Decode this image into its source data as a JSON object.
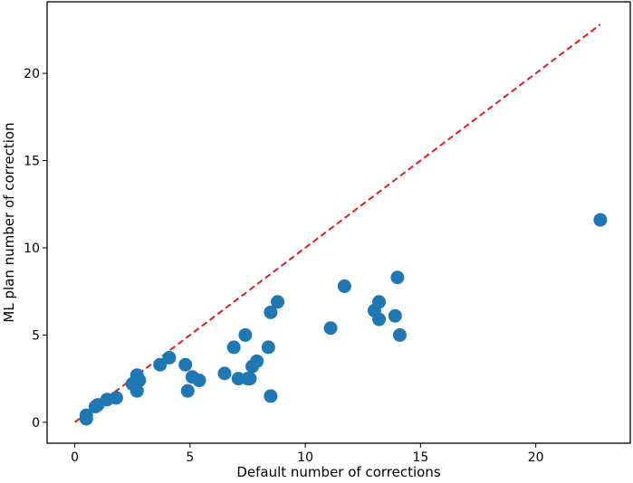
{
  "chart_data": {
    "type": "scatter",
    "title": "",
    "xlabel": "Default number of corrections",
    "ylabel": "ML plan number of correction",
    "xlim": [
      -1.2,
      24.1
    ],
    "ylim": [
      -1.2,
      24.1
    ],
    "xticks": [
      0,
      5,
      10,
      15,
      20
    ],
    "yticks": [
      0,
      5,
      10,
      15,
      20
    ],
    "grid": false,
    "legend": "none",
    "point_color": "#1f77b4",
    "reference_line": {
      "style": "dashed",
      "color": "#e41a1c",
      "from": [
        0,
        0
      ],
      "to": [
        22.8,
        22.8
      ]
    },
    "series": [
      {
        "x": [
          0.5,
          0.5,
          0.9,
          1.0,
          1.4,
          1.8,
          2.5,
          2.7,
          2.7,
          2.8,
          3.7,
          4.1,
          4.8,
          4.9,
          5.1,
          5.4,
          6.5,
          6.9,
          7.1,
          7.4,
          7.5,
          7.6,
          7.7,
          7.9,
          8.4,
          8.5,
          8.5,
          8.8,
          11.1,
          11.7,
          13.0,
          13.2,
          13.2,
          13.9,
          14.0,
          14.1,
          22.8
        ],
        "y": [
          0.2,
          0.4,
          0.9,
          1.0,
          1.3,
          1.4,
          2.2,
          1.8,
          2.7,
          2.4,
          3.3,
          3.7,
          3.3,
          1.8,
          2.6,
          2.4,
          2.8,
          4.3,
          2.5,
          5.0,
          2.5,
          2.5,
          3.2,
          3.5,
          4.3,
          6.3,
          1.5,
          6.9,
          5.4,
          7.8,
          6.4,
          5.9,
          6.9,
          6.1,
          8.3,
          5.0,
          11.6
        ]
      }
    ]
  }
}
